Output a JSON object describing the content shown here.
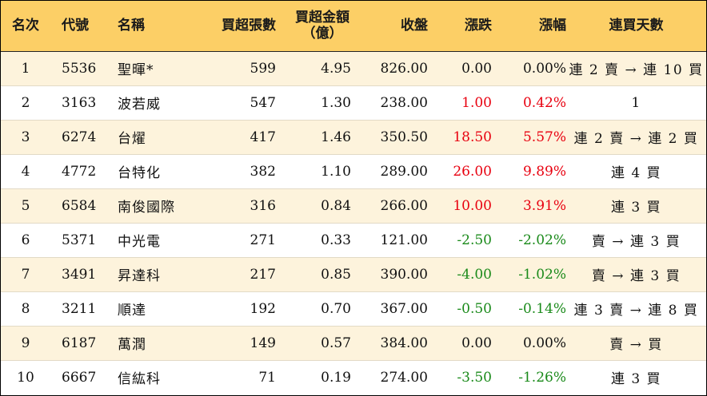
{
  "table": {
    "headers": {
      "rank": "名次",
      "code": "代號",
      "name": "名稱",
      "lots": "買超張數",
      "amount_line1": "買超金額",
      "amount_line2": "（億）",
      "close": "收盤",
      "change": "漲跌",
      "pct": "漲幅",
      "days": "連買天數"
    },
    "colors": {
      "up": "#e8000f",
      "down": "#1a8a1a",
      "flat": "#111111",
      "header_bg": "#fccf66",
      "stripe_bg": "#fdf3dc"
    },
    "rows": [
      {
        "rank": "1",
        "code": "5536",
        "name": "聖暉*",
        "lots": "599",
        "amount": "4.95",
        "close": "826.00",
        "change": "0.00",
        "pct": "0.00%",
        "days": "連 2 賣 → 連 10 買",
        "trend": "flat"
      },
      {
        "rank": "2",
        "code": "3163",
        "name": "波若威",
        "lots": "547",
        "amount": "1.30",
        "close": "238.00",
        "change": "1.00",
        "pct": "0.42%",
        "days": "1",
        "trend": "up"
      },
      {
        "rank": "3",
        "code": "6274",
        "name": "台燿",
        "lots": "417",
        "amount": "1.46",
        "close": "350.50",
        "change": "18.50",
        "pct": "5.57%",
        "days": "連 2 賣 → 連 2 買",
        "trend": "up"
      },
      {
        "rank": "4",
        "code": "4772",
        "name": "台特化",
        "lots": "382",
        "amount": "1.10",
        "close": "289.00",
        "change": "26.00",
        "pct": "9.89%",
        "days": "連 4 買",
        "trend": "up"
      },
      {
        "rank": "5",
        "code": "6584",
        "name": "南俊國際",
        "lots": "316",
        "amount": "0.84",
        "close": "266.00",
        "change": "10.00",
        "pct": "3.91%",
        "days": "連 3 買",
        "trend": "up"
      },
      {
        "rank": "6",
        "code": "5371",
        "name": "中光電",
        "lots": "271",
        "amount": "0.33",
        "close": "121.00",
        "change": "-2.50",
        "pct": "-2.02%",
        "days": "賣 → 連 3 買",
        "trend": "down"
      },
      {
        "rank": "7",
        "code": "3491",
        "name": "昇達科",
        "lots": "217",
        "amount": "0.85",
        "close": "390.00",
        "change": "-4.00",
        "pct": "-1.02%",
        "days": "賣 → 連 3 買",
        "trend": "down"
      },
      {
        "rank": "8",
        "code": "3211",
        "name": "順達",
        "lots": "192",
        "amount": "0.70",
        "close": "367.00",
        "change": "-0.50",
        "pct": "-0.14%",
        "days": "連 3 賣 → 連 8 買",
        "trend": "down"
      },
      {
        "rank": "9",
        "code": "6187",
        "name": "萬潤",
        "lots": "149",
        "amount": "0.57",
        "close": "384.00",
        "change": "0.00",
        "pct": "0.00%",
        "days": "賣 → 買",
        "trend": "flat"
      },
      {
        "rank": "10",
        "code": "6667",
        "name": "信紘科",
        "lots": "71",
        "amount": "0.19",
        "close": "274.00",
        "change": "-3.50",
        "pct": "-1.26%",
        "days": "連 3 買",
        "trend": "down"
      }
    ]
  }
}
